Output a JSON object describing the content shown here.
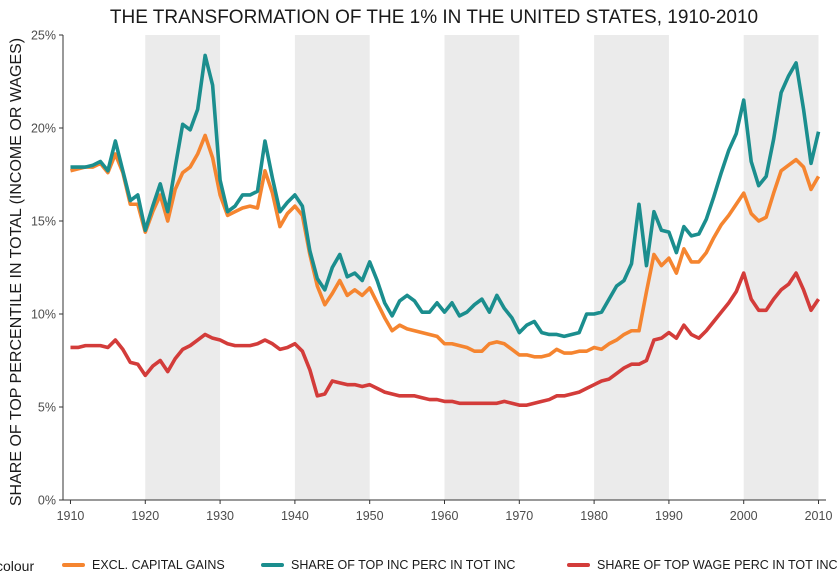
{
  "chart_data": {
    "type": "line",
    "title": "THE TRANSFORMATION OF THE 1% IN THE UNITED STATES, 1910-2010",
    "xlabel": "",
    "ylabel": "SHARE OF TOP PERCENTILE IN TOTAL (INCOME OR WAGES)",
    "xlim": [
      1909,
      2011
    ],
    "ylim": [
      0,
      25
    ],
    "x_ticks": [
      1910,
      1920,
      1930,
      1940,
      1950,
      1960,
      1970,
      1980,
      1990,
      2000,
      2010
    ],
    "x_tick_labels": [
      "1910",
      "1920",
      "1930",
      "1940",
      "1950",
      "1960",
      "1970",
      "1980",
      "1990",
      "2000",
      "2010"
    ],
    "y_ticks": [
      0,
      5,
      10,
      15,
      20,
      25
    ],
    "y_tick_labels": [
      "0%",
      "5%",
      "10%",
      "15%",
      "20%",
      "25%"
    ],
    "shaded_decades": [
      [
        1920,
        1930
      ],
      [
        1940,
        1950
      ],
      [
        1960,
        1970
      ],
      [
        1980,
        1990
      ],
      [
        2000,
        2010
      ]
    ],
    "grid": false,
    "legend_title": "colour",
    "legend_position": "bottom",
    "x": [
      1910,
      1911,
      1912,
      1913,
      1914,
      1915,
      1916,
      1917,
      1918,
      1919,
      1920,
      1921,
      1922,
      1923,
      1924,
      1925,
      1926,
      1927,
      1928,
      1929,
      1930,
      1931,
      1932,
      1933,
      1934,
      1935,
      1936,
      1937,
      1938,
      1939,
      1940,
      1941,
      1942,
      1943,
      1944,
      1945,
      1946,
      1947,
      1948,
      1949,
      1950,
      1951,
      1952,
      1953,
      1954,
      1955,
      1956,
      1957,
      1958,
      1959,
      1960,
      1961,
      1962,
      1963,
      1964,
      1965,
      1966,
      1967,
      1968,
      1969,
      1970,
      1971,
      1972,
      1973,
      1974,
      1975,
      1976,
      1977,
      1978,
      1979,
      1980,
      1981,
      1982,
      1983,
      1984,
      1985,
      1986,
      1987,
      1988,
      1989,
      1990,
      1991,
      1992,
      1993,
      1994,
      1995,
      1996,
      1997,
      1998,
      1999,
      2000,
      2001,
      2002,
      2003,
      2004,
      2005,
      2006,
      2007,
      2008,
      2009,
      2010
    ],
    "series": [
      {
        "name": "EXCL. CAPITAL GAINS",
        "color": "#F58530",
        "values": [
          17.7,
          17.8,
          17.9,
          17.9,
          18.1,
          17.6,
          18.6,
          17.6,
          15.9,
          15.9,
          14.4,
          15.5,
          16.4,
          15.0,
          16.7,
          17.6,
          17.9,
          18.6,
          19.6,
          18.4,
          16.4,
          15.3,
          15.5,
          15.7,
          15.8,
          15.7,
          17.7,
          16.5,
          14.7,
          15.4,
          15.8,
          15.3,
          13.2,
          11.5,
          10.5,
          11.1,
          11.8,
          11.0,
          11.3,
          11.0,
          11.4,
          10.6,
          9.8,
          9.1,
          9.4,
          9.2,
          9.1,
          9.0,
          8.9,
          8.8,
          8.4,
          8.4,
          8.3,
          8.2,
          8.0,
          8.0,
          8.4,
          8.5,
          8.4,
          8.1,
          7.8,
          7.8,
          7.7,
          7.7,
          7.8,
          8.1,
          7.9,
          7.9,
          8.0,
          8.0,
          8.2,
          8.1,
          8.4,
          8.6,
          8.9,
          9.1,
          9.1,
          11.2,
          13.2,
          12.6,
          13.0,
          12.2,
          13.5,
          12.8,
          12.8,
          13.3,
          14.1,
          14.8,
          15.3,
          15.9,
          16.5,
          15.4,
          15.0,
          15.2,
          16.5,
          17.7,
          18.0,
          18.3,
          17.9,
          16.7,
          17.4
        ]
      },
      {
        "name": "SHARE OF TOP INC PERC IN TOT INC",
        "color": "#1B8E8E",
        "values": [
          17.9,
          17.9,
          17.9,
          18.0,
          18.2,
          17.7,
          19.3,
          17.7,
          16.1,
          16.4,
          14.5,
          15.8,
          17.0,
          15.5,
          17.9,
          20.2,
          19.9,
          21.0,
          23.9,
          22.3,
          17.2,
          15.5,
          15.8,
          16.4,
          16.4,
          16.6,
          19.3,
          17.3,
          15.5,
          16.0,
          16.4,
          15.8,
          13.4,
          11.9,
          11.3,
          12.5,
          13.2,
          12.0,
          12.2,
          11.8,
          12.8,
          11.8,
          10.6,
          9.9,
          10.7,
          11.0,
          10.7,
          10.1,
          10.1,
          10.6,
          10.1,
          10.6,
          9.9,
          10.1,
          10.5,
          10.8,
          10.1,
          11.0,
          10.3,
          9.8,
          9.0,
          9.4,
          9.6,
          9.0,
          8.9,
          8.9,
          8.8,
          8.9,
          9.0,
          10.0,
          10.0,
          10.1,
          10.8,
          11.5,
          11.8,
          12.7,
          15.9,
          12.6,
          15.5,
          14.5,
          14.4,
          13.3,
          14.7,
          14.2,
          14.3,
          15.1,
          16.3,
          17.6,
          18.8,
          19.7,
          21.5,
          18.2,
          16.9,
          17.4,
          19.4,
          21.9,
          22.8,
          23.5,
          21.0,
          18.1,
          19.8
        ]
      },
      {
        "name": "SHARE OF TOP WAGE PERC IN TOT INC",
        "color": "#D33C3A",
        "values": [
          8.2,
          8.2,
          8.3,
          8.3,
          8.3,
          8.2,
          8.6,
          8.1,
          7.4,
          7.3,
          6.7,
          7.2,
          7.5,
          6.9,
          7.6,
          8.1,
          8.3,
          8.6,
          8.9,
          8.7,
          8.6,
          8.4,
          8.3,
          8.3,
          8.3,
          8.4,
          8.6,
          8.4,
          8.1,
          8.2,
          8.4,
          8.0,
          7.0,
          5.6,
          5.7,
          6.4,
          6.3,
          6.2,
          6.2,
          6.1,
          6.2,
          6.0,
          5.8,
          5.7,
          5.6,
          5.6,
          5.6,
          5.5,
          5.4,
          5.4,
          5.3,
          5.3,
          5.2,
          5.2,
          5.2,
          5.2,
          5.2,
          5.2,
          5.3,
          5.2,
          5.1,
          5.1,
          5.2,
          5.3,
          5.4,
          5.6,
          5.6,
          5.7,
          5.8,
          6.0,
          6.2,
          6.4,
          6.5,
          6.8,
          7.1,
          7.3,
          7.3,
          7.5,
          8.6,
          8.7,
          9.0,
          8.7,
          9.4,
          8.9,
          8.7,
          9.1,
          9.6,
          10.1,
          10.6,
          11.2,
          12.2,
          10.8,
          10.2,
          10.2,
          10.8,
          11.3,
          11.6,
          12.2,
          11.3,
          10.2,
          10.8
        ]
      }
    ]
  }
}
